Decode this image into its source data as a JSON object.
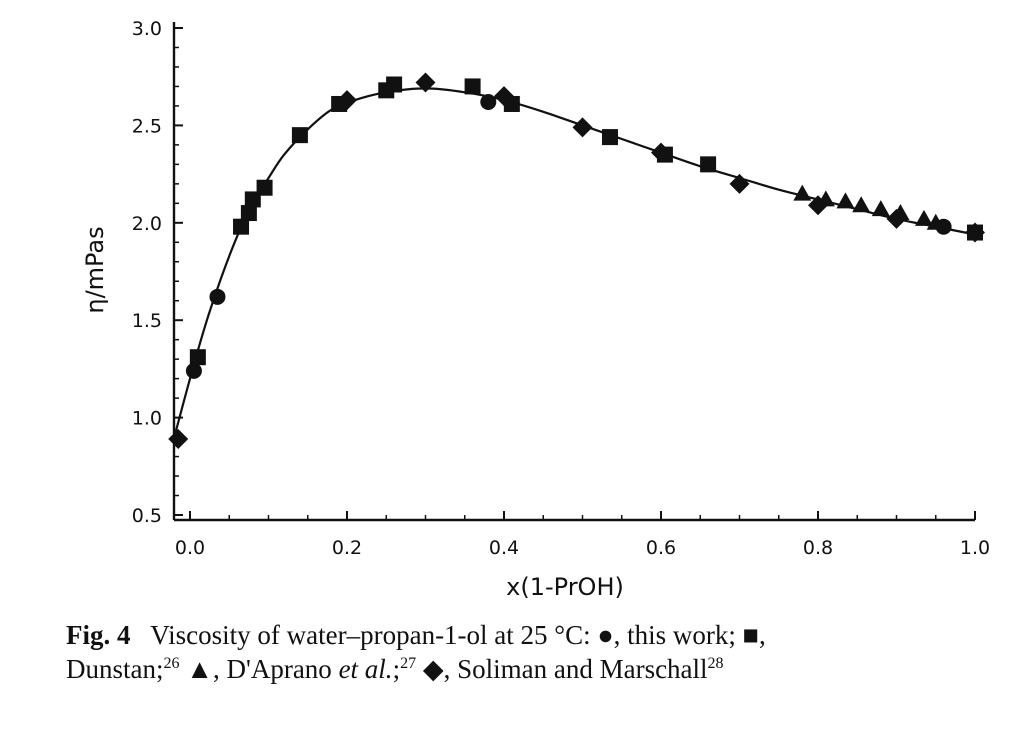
{
  "chart_data": {
    "type": "scatter",
    "xlabel": "x(1-PrOH)",
    "ylabel": "η/mPas",
    "xlim": [
      -0.02,
      1.0
    ],
    "ylim": [
      0.5,
      3.0
    ],
    "x_ticks": [
      "0.0",
      "0.2",
      "0.4",
      "0.6",
      "0.8",
      "1.0"
    ],
    "y_ticks": [
      "0.5",
      "1.0",
      "1.5",
      "2.0",
      "2.5",
      "3.0"
    ],
    "grid": false,
    "series": [
      {
        "name": "this work",
        "marker": "circle",
        "x": [
          0.005,
          0.035,
          0.38,
          0.96
        ],
        "y": [
          1.24,
          1.62,
          2.62,
          1.98
        ]
      },
      {
        "name": "Dunstan",
        "marker": "square",
        "x": [
          0.01,
          0.065,
          0.075,
          0.08,
          0.095,
          0.14,
          0.19,
          0.25,
          0.26,
          0.36,
          0.41,
          0.535,
          0.605,
          0.66,
          1.0
        ],
        "y": [
          1.31,
          1.98,
          2.05,
          2.12,
          2.18,
          2.45,
          2.61,
          2.68,
          2.71,
          2.7,
          2.61,
          2.44,
          2.35,
          2.3,
          1.95
        ]
      },
      {
        "name": "D'Aprano et al.",
        "marker": "triangle",
        "x": [
          0.78,
          0.81,
          0.835,
          0.855,
          0.88,
          0.905,
          0.935,
          0.95
        ],
        "y": [
          2.15,
          2.12,
          2.11,
          2.09,
          2.07,
          2.05,
          2.02,
          2.0
        ]
      },
      {
        "name": "Soliman and Marschall",
        "marker": "diamond",
        "x": [
          -0.015,
          0.2,
          0.3,
          0.4,
          0.5,
          0.6,
          0.7,
          0.8,
          0.9,
          1.0
        ],
        "y": [
          0.89,
          2.63,
          2.72,
          2.65,
          2.49,
          2.36,
          2.2,
          2.09,
          2.02,
          1.95
        ]
      }
    ],
    "fit_curve": {
      "x": [
        -0.02,
        0.0,
        0.02,
        0.04,
        0.06,
        0.08,
        0.1,
        0.12,
        0.15,
        0.18,
        0.21,
        0.25,
        0.3,
        0.35,
        0.4,
        0.45,
        0.5,
        0.55,
        0.6,
        0.65,
        0.7,
        0.75,
        0.8,
        0.85,
        0.9,
        0.95,
        1.0
      ],
      "y": [
        0.9,
        1.2,
        1.48,
        1.72,
        1.93,
        2.1,
        2.23,
        2.35,
        2.48,
        2.58,
        2.63,
        2.67,
        2.69,
        2.67,
        2.63,
        2.57,
        2.5,
        2.43,
        2.36,
        2.29,
        2.23,
        2.17,
        2.12,
        2.07,
        2.02,
        1.98,
        1.94
      ]
    }
  },
  "caption": {
    "fig": "Fig. 4",
    "text1": "Viscosity of water–propan-1-ol at 25 °C: ●, this work; ■,",
    "text2": "Dunstan;",
    "ref26": "26",
    "text3": "▲, D'Aprano",
    "etal": "et al.",
    "text4": ";",
    "ref27": "27",
    "text5": "◆, Soliman and Marschall",
    "ref28": "28"
  }
}
